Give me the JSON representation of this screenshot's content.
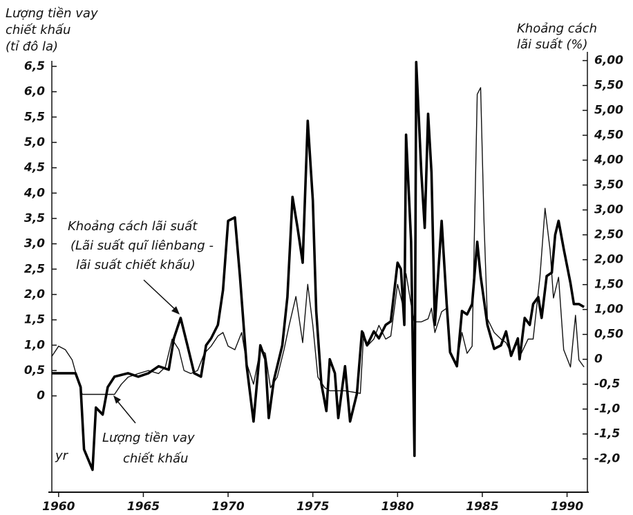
{
  "chart_data": {
    "type": "line",
    "y_label_lines": [
      "Lượng tiền vay",
      "chiết khấu",
      "(tỉ đô la)"
    ],
    "y2_label_lines": [
      "Khoảng cách",
      "lãi suất (%)"
    ],
    "annotations": [
      {
        "lines": [
          "Khoảng cách lãi suất",
          "(Lãi suất quĩ liênbang -",
          "lãi suất chiết khấu)"
        ]
      },
      {
        "lines": [
          "Lượng tiền vay",
          "chiết khấu"
        ]
      },
      {
        "lines": [
          "yr"
        ]
      }
    ],
    "xlim": [
      1959.6,
      1991.2
    ],
    "xticks": [
      1960,
      1965,
      1970,
      1975,
      1980,
      1985,
      1990
    ],
    "ylim": [
      -1.9,
      7.4
    ],
    "yticks": [
      0,
      {
        "value": 0.5,
        "label": "0,5"
      },
      {
        "value": 1.0,
        "label": "1,0"
      },
      {
        "value": 1.5,
        "label": "1,5"
      },
      {
        "value": 2.0,
        "label": "2,0"
      },
      {
        "value": 2.5,
        "label": "2,5"
      },
      {
        "value": 3.0,
        "label": "3,0"
      },
      {
        "value": 3.5,
        "label": "3,5"
      },
      {
        "value": 4.0,
        "label": "4,0"
      },
      {
        "value": 4.5,
        "label": "4,5"
      },
      {
        "value": 5.0,
        "label": "5,0"
      },
      {
        "value": 5.5,
        "label": "5,5"
      },
      {
        "value": 6.0,
        "label": "6,0"
      },
      {
        "value": 6.5,
        "label": "6,5"
      }
    ],
    "y2lim": [
      -2.67,
      6.8
    ],
    "y2ticks": [
      {
        "value": -2.0,
        "label": "-2,0"
      },
      {
        "value": -1.5,
        "label": "-1,5"
      },
      {
        "value": -1.0,
        "label": "-1,0"
      },
      {
        "value": -0.5,
        "label": "-0,5"
      },
      0,
      {
        "value": 0.5,
        "label": "0,50"
      },
      {
        "value": 1.0,
        "label": "1,00"
      },
      {
        "value": 1.5,
        "label": "1,50"
      },
      {
        "value": 2.0,
        "label": "2,00"
      },
      {
        "value": 2.5,
        "label": "2,50"
      },
      {
        "value": 3.0,
        "label": "3,00"
      },
      {
        "value": 3.5,
        "label": "3,50"
      },
      {
        "value": 4.0,
        "label": "4,00"
      },
      {
        "value": 4.5,
        "label": "4,50"
      },
      {
        "value": 5.0,
        "label": "5,00"
      },
      {
        "value": 5.5,
        "label": "5,50"
      },
      {
        "value": 6.0,
        "label": "6,00"
      }
    ],
    "series": [
      {
        "color": "#111111",
        "width": 1.4,
        "axis": "y",
        "x": [
          1959.6,
          1960.0,
          1960.4,
          1960.8,
          1961.2,
          1961.4,
          1963.3,
          1963.7,
          1964.1,
          1964.7,
          1965.3,
          1965.9,
          1966.3,
          1966.7,
          1967.1,
          1967.4,
          1967.8,
          1968.2,
          1968.6,
          1969.0,
          1969.4,
          1969.7,
          1970.0,
          1970.4,
          1970.8,
          1971.1,
          1971.5,
          1971.9,
          1972.2,
          1972.5,
          1972.9,
          1973.3,
          1973.6,
          1974.0,
          1974.4,
          1974.7,
          1975.0,
          1975.3,
          1975.7,
          1976.0,
          1976.9,
          1977.8,
          1978.0,
          1978.2,
          1978.6,
          1978.9,
          1979.3,
          1979.6,
          1980.0,
          1980.3,
          1980.5,
          1980.8,
          1981.0,
          1981.4,
          1981.8,
          1982.0,
          1982.2,
          1982.6,
          1982.9,
          1983.1,
          1983.5,
          1983.8,
          1984.1,
          1984.4,
          1984.7,
          1984.9,
          1985.1,
          1985.3,
          1985.7,
          1986.1,
          1986.4,
          1986.7,
          1987.1,
          1987.3,
          1987.7,
          1988.0,
          1988.4,
          1988.7,
          1989.0,
          1989.2,
          1989.5,
          1989.8,
          1990.2,
          1990.5,
          1990.7,
          1991.0
        ],
        "values": [
          0.78,
          0.98,
          0.91,
          0.71,
          0.23,
          0.03,
          0.03,
          0.23,
          0.37,
          0.44,
          0.5,
          0.44,
          0.57,
          1.12,
          0.91,
          0.5,
          0.44,
          0.5,
          0.84,
          0.98,
          1.18,
          1.25,
          0.98,
          0.91,
          1.25,
          0.64,
          0.23,
          0.91,
          0.84,
          0.16,
          0.37,
          0.91,
          1.39,
          1.96,
          1.05,
          2.2,
          1.39,
          0.37,
          0.16,
          0.1,
          0.1,
          0.05,
          1.25,
          0.98,
          1.12,
          1.39,
          1.12,
          1.18,
          2.2,
          1.8,
          2.41,
          1.8,
          1.46,
          1.46,
          1.52,
          1.73,
          1.25,
          1.66,
          1.73,
          0.84,
          0.64,
          1.25,
          0.84,
          0.98,
          5.95,
          6.08,
          3.43,
          1.52,
          1.25,
          1.12,
          1.05,
          0.84,
          1.05,
          0.84,
          1.12,
          1.12,
          2.34,
          3.7,
          2.88,
          1.93,
          2.34,
          0.91,
          0.57,
          1.59,
          0.71,
          0.57
        ]
      },
      {
        "color": "#000000",
        "width": 3.6,
        "axis": "y2",
        "x": [
          1959.6,
          1961.0,
          1961.3,
          1961.5,
          1962.0,
          1962.2,
          1962.6,
          1962.9,
          1963.3,
          1964.1,
          1964.7,
          1965.3,
          1965.9,
          1966.5,
          1966.8,
          1967.2,
          1967.6,
          1968.0,
          1968.4,
          1968.7,
          1969.0,
          1969.4,
          1969.7,
          1970.0,
          1970.4,
          1970.7,
          1971.1,
          1971.5,
          1971.9,
          1972.2,
          1972.4,
          1972.7,
          1973.2,
          1973.5,
          1973.8,
          1974.1,
          1974.4,
          1974.7,
          1975.0,
          1975.2,
          1975.5,
          1975.8,
          1976.0,
          1976.3,
          1976.5,
          1976.9,
          1977.2,
          1977.6,
          1977.9,
          1978.2,
          1978.6,
          1978.9,
          1979.3,
          1979.6,
          1980.0,
          1980.2,
          1980.4,
          1980.5,
          1980.8,
          1981.0,
          1981.1,
          1981.4,
          1981.6,
          1981.8,
          1982.0,
          1982.2,
          1982.6,
          1982.9,
          1983.1,
          1983.5,
          1983.8,
          1984.1,
          1984.4,
          1984.7,
          1984.9,
          1985.3,
          1985.7,
          1986.1,
          1986.4,
          1986.7,
          1987.1,
          1987.2,
          1987.5,
          1987.8,
          1988.0,
          1988.3,
          1988.5,
          1988.8,
          1989.1,
          1989.3,
          1989.5,
          1989.8,
          1990.2,
          1990.4,
          1990.7,
          1991.0
        ],
        "values": [
          -0.28,
          -0.28,
          -0.56,
          -1.81,
          -2.22,
          -0.97,
          -1.11,
          -0.56,
          -0.35,
          -0.28,
          -0.35,
          -0.28,
          -0.14,
          -0.21,
          0.42,
          0.83,
          0.28,
          -0.28,
          -0.35,
          0.28,
          0.42,
          0.69,
          1.39,
          2.78,
          2.85,
          1.67,
          -0.14,
          -1.25,
          0.28,
          0,
          -1.18,
          -0.42,
          0.28,
          1.25,
          3.26,
          2.64,
          1.94,
          4.79,
          3.19,
          0.97,
          -0.49,
          -1.04,
          0,
          -0.28,
          -1.18,
          -0.14,
          -1.25,
          -0.69,
          0.56,
          0.28,
          0.56,
          0.42,
          0.69,
          0.76,
          1.94,
          1.81,
          0.69,
          4.51,
          2.36,
          -1.94,
          5.97,
          3.75,
          2.64,
          4.93,
          3.75,
          0.69,
          2.78,
          1.11,
          0.14,
          -0.14,
          0.97,
          0.9,
          1.11,
          2.36,
          1.67,
          0.69,
          0.21,
          0.28,
          0.56,
          0.07,
          0.42,
          0,
          0.83,
          0.69,
          1.11,
          1.25,
          0.83,
          1.67,
          1.74,
          2.5,
          2.78,
          2.22,
          1.53,
          1.11,
          1.11,
          1.05
        ]
      }
    ]
  }
}
